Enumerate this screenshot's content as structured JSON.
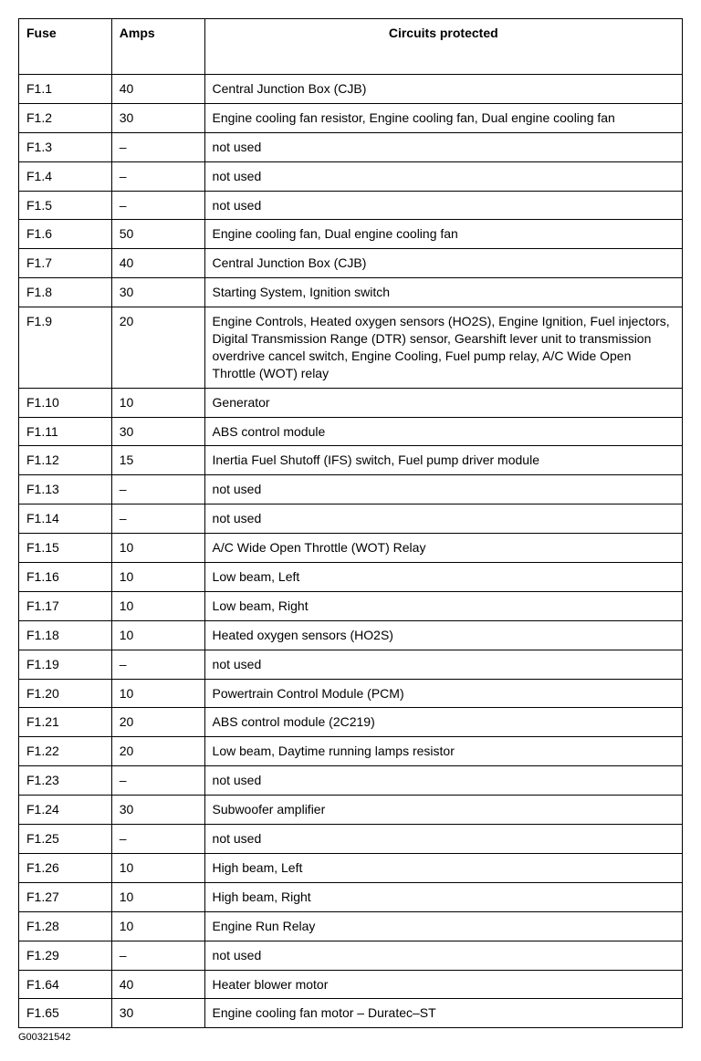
{
  "table": {
    "columns": [
      "Fuse",
      "Amps",
      "Circuits protected"
    ],
    "col_widths_pct": [
      14,
      14,
      72
    ],
    "border_color": "#000000",
    "background_color": "#ffffff",
    "header_fontweight": "bold",
    "fontsize_pt": 14,
    "rows": [
      [
        "F1.1",
        "40",
        "Central Junction Box (CJB)"
      ],
      [
        "F1.2",
        "30",
        "Engine cooling fan resistor, Engine cooling fan, Dual engine cooling fan"
      ],
      [
        "F1.3",
        "–",
        "not used"
      ],
      [
        "F1.4",
        "–",
        "not used"
      ],
      [
        "F1.5",
        "–",
        "not used"
      ],
      [
        "F1.6",
        "50",
        "Engine cooling fan, Dual engine cooling fan"
      ],
      [
        "F1.7",
        "40",
        "Central Junction Box (CJB)"
      ],
      [
        "F1.8",
        "30",
        "Starting System, Ignition switch"
      ],
      [
        "F1.9",
        "20",
        "Engine Controls, Heated oxygen sensors (HO2S), Engine Ignition, Fuel injectors, Digital Transmission Range (DTR) sensor, Gearshift lever unit to transmission overdrive cancel switch, Engine Cooling, Fuel pump relay, A/C Wide Open Throttle (WOT) relay"
      ],
      [
        "F1.10",
        "10",
        "Generator"
      ],
      [
        "F1.11",
        "30",
        "ABS control module"
      ],
      [
        "F1.12",
        "15",
        "Inertia Fuel Shutoff (IFS) switch, Fuel pump driver module"
      ],
      [
        "F1.13",
        "–",
        "not used"
      ],
      [
        "F1.14",
        "–",
        "not used"
      ],
      [
        "F1.15",
        "10",
        "A/C Wide Open Throttle (WOT) Relay"
      ],
      [
        "F1.16",
        "10",
        "Low beam, Left"
      ],
      [
        "F1.17",
        "10",
        "Low beam, Right"
      ],
      [
        "F1.18",
        "10",
        "Heated oxygen sensors (HO2S)"
      ],
      [
        "F1.19",
        "–",
        "not used"
      ],
      [
        "F1.20",
        "10",
        "Powertrain Control Module (PCM)"
      ],
      [
        "F1.21",
        "20",
        "ABS control module (2C219)"
      ],
      [
        "F1.22",
        "20",
        "Low beam, Daytime running lamps resistor"
      ],
      [
        "F1.23",
        "–",
        "not used"
      ],
      [
        "F1.24",
        "30",
        "Subwoofer amplifier"
      ],
      [
        "F1.25",
        "–",
        "not used"
      ],
      [
        "F1.26",
        "10",
        "High beam, Left"
      ],
      [
        "F1.27",
        "10",
        "High beam, Right"
      ],
      [
        "F1.28",
        "10",
        "Engine Run Relay"
      ],
      [
        "F1.29",
        "–",
        "not used"
      ],
      [
        "F1.64",
        "40",
        "Heater blower motor"
      ],
      [
        "F1.65",
        "30",
        "Engine cooling fan motor – Duratec–ST"
      ]
    ]
  },
  "footer_id": "G00321542"
}
